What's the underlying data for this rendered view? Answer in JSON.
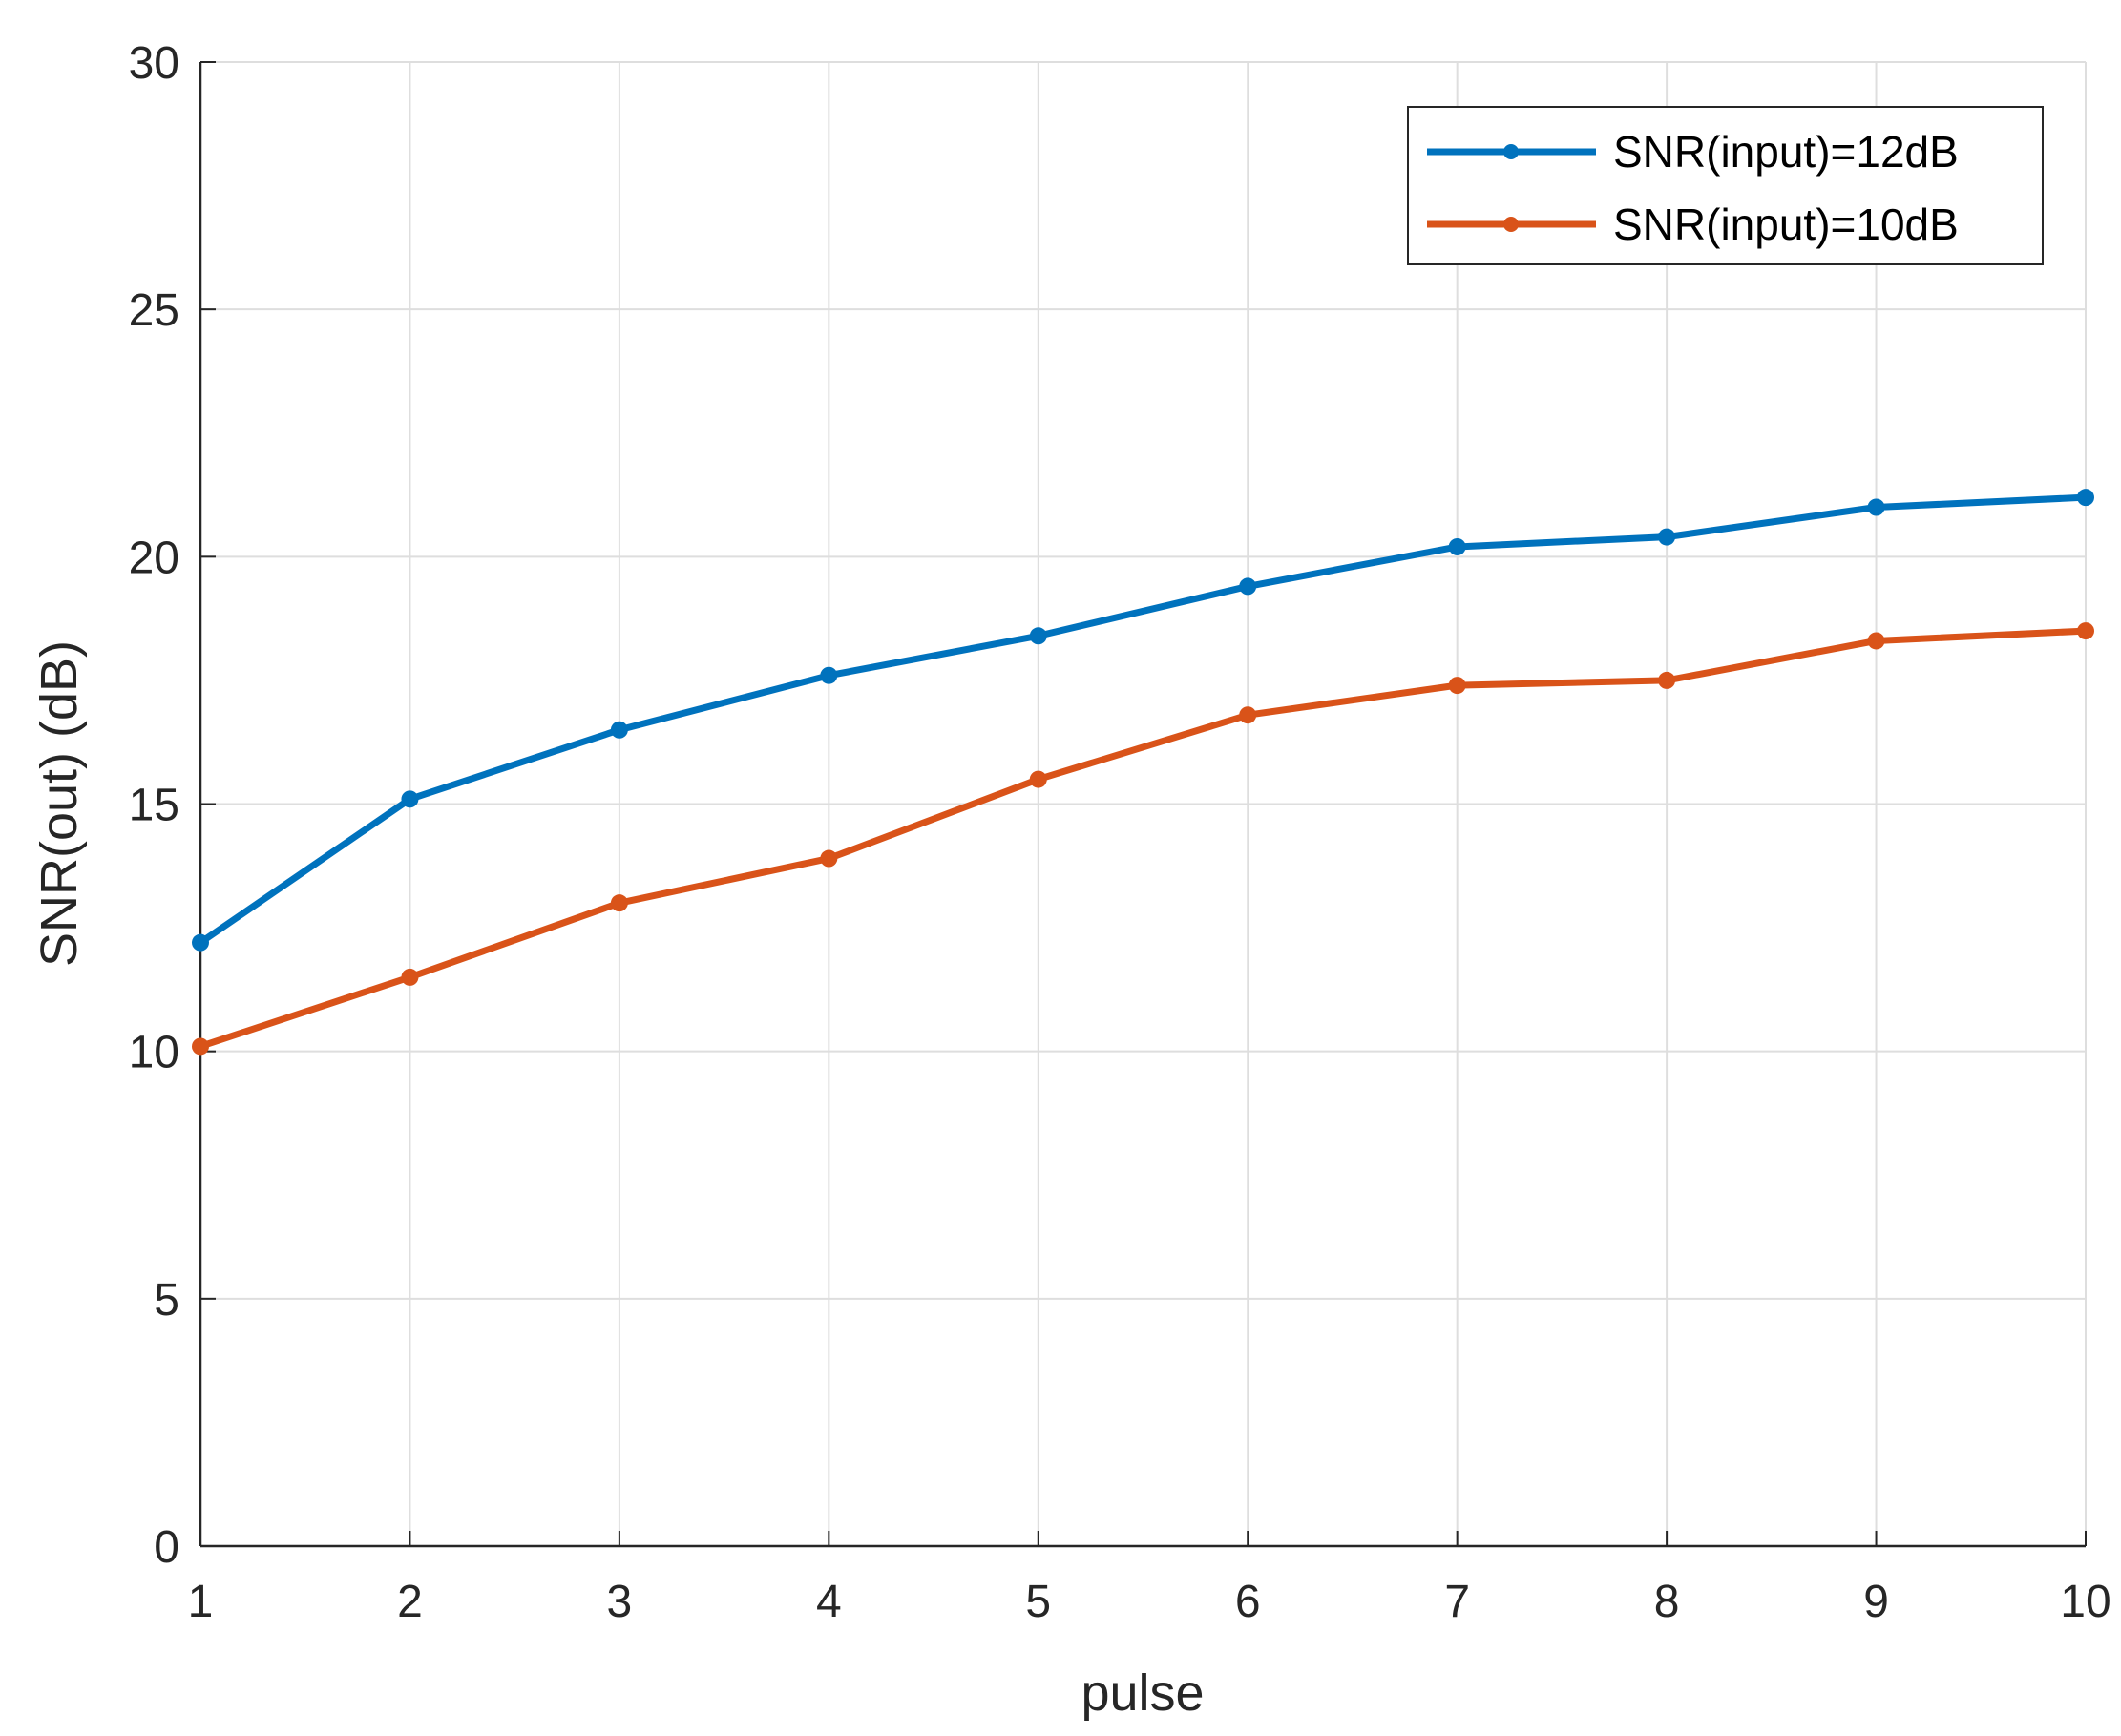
{
  "chart_data": {
    "type": "line",
    "title": "",
    "xlabel": "pulse",
    "ylabel": "SNR(out) (dB)",
    "x": [
      1,
      2,
      3,
      4,
      5,
      6,
      7,
      8,
      9,
      10
    ],
    "xlim": [
      1,
      10
    ],
    "ylim": [
      0,
      30
    ],
    "xticks": [
      "1",
      "2",
      "3",
      "4",
      "5",
      "6",
      "7",
      "8",
      "9",
      "10"
    ],
    "yticks": [
      "0",
      "5",
      "10",
      "15",
      "20",
      "25",
      "30"
    ],
    "grid": true,
    "legend_position": "top-right",
    "series": [
      {
        "name": "SNR(input)=12dB",
        "color": "#0072BD",
        "values": [
          12.2,
          15.1,
          16.5,
          17.6,
          18.4,
          19.4,
          20.2,
          20.4,
          21.0,
          21.2
        ]
      },
      {
        "name": "SNR(input)=10dB",
        "color": "#D95319",
        "values": [
          10.1,
          11.5,
          13.0,
          13.9,
          15.5,
          16.8,
          17.4,
          17.5,
          18.3,
          18.5
        ]
      }
    ]
  }
}
